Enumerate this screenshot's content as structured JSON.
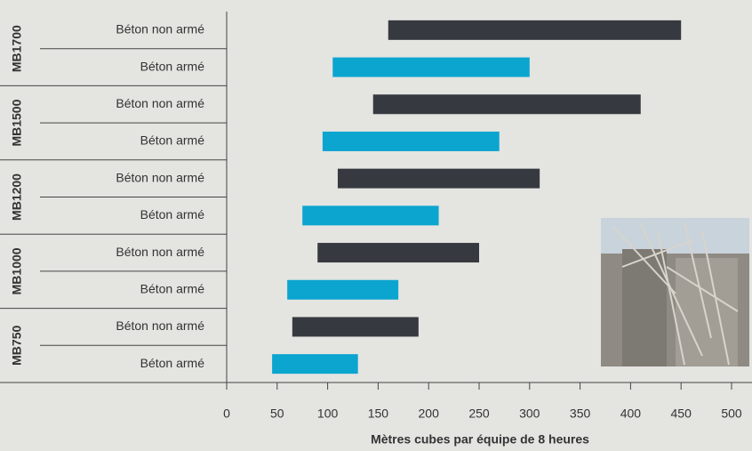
{
  "chart_data": {
    "type": "floating-bar",
    "categories": [
      "MB1700",
      "MB1500",
      "MB1200",
      "MB1000",
      "MB750"
    ],
    "series": [
      {
        "name": "Béton non armé",
        "color": "#363a40",
        "values": [
          [
            160,
            450
          ],
          [
            145,
            410
          ],
          [
            110,
            310
          ],
          [
            90,
            250
          ],
          [
            65,
            190
          ]
        ]
      },
      {
        "name": "Béton armé",
        "color": "#0ba5cf",
        "values": [
          [
            105,
            300
          ],
          [
            95,
            270
          ],
          [
            75,
            210
          ],
          [
            60,
            170
          ],
          [
            45,
            130
          ]
        ]
      }
    ],
    "xlabel": "Mètres cubes par équipe de 8 heures",
    "xlim": [
      0,
      500
    ],
    "xticks": [
      0,
      50,
      100,
      150,
      200,
      250,
      300,
      350,
      400,
      450,
      500
    ]
  }
}
